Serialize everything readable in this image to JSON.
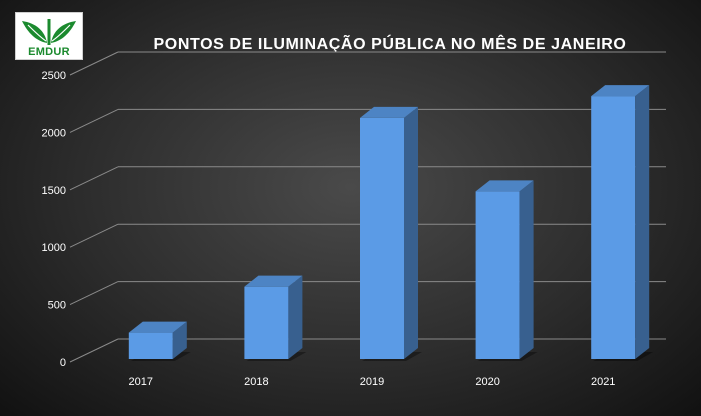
{
  "logo": {
    "text": "EMDUR"
  },
  "chart_data": {
    "type": "bar",
    "title": "PONTOS DE ILUMINAÇÃO  PÚBLICA NO MÊS DE JANEIRO",
    "categories": [
      "2017",
      "2018",
      "2019",
      "2020",
      "2021"
    ],
    "values": [
      230,
      630,
      2100,
      1460,
      2290
    ],
    "ylim": [
      0,
      2500
    ],
    "yticks": [
      "0",
      "500",
      "1000",
      "1500",
      "2000",
      "2500"
    ],
    "xlabel": "",
    "ylabel": "",
    "grid": true,
    "legend": "none",
    "bar_color": "#5b9be6"
  }
}
